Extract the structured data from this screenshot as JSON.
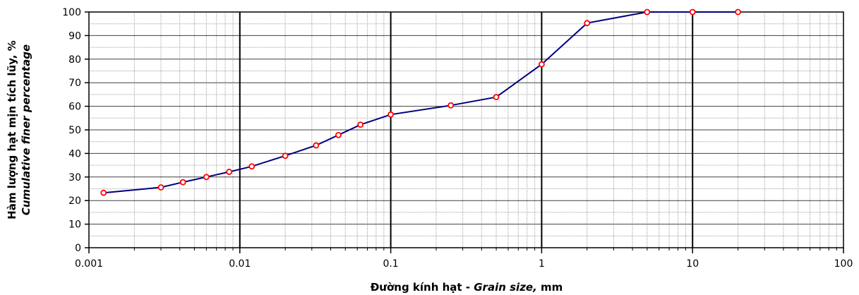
{
  "chart_data": {
    "type": "line",
    "xscale": "log",
    "xlim": [
      0.001,
      100
    ],
    "ylim": [
      0,
      100
    ],
    "grid": true,
    "xticks": [
      "0.001",
      "0.01",
      "0.1",
      "1",
      "10",
      "100"
    ],
    "yticks": [
      "0",
      "10",
      "20",
      "30",
      "40",
      "50",
      "60",
      "70",
      "80",
      "90",
      "100"
    ],
    "xlabel_main": "Đường kính hạt - ",
    "xlabel_italic": "Grain size,",
    "xlabel_unit": " mm",
    "ylabel_line1": "Hàm lượng hạt mịn tích lũy, %",
    "ylabel_line2": "Cumulative finer percentage",
    "colors": {
      "line": "#000080",
      "marker_edge": "#ff0000",
      "marker_fill": "#ffffff",
      "major_grid": "#000000",
      "minor_grid": "#a0a0a0"
    },
    "series": [
      {
        "x": [
          0.00125,
          0.003,
          0.0042,
          0.006,
          0.0085,
          0.012,
          0.02,
          0.032,
          0.045,
          0.063,
          0.1,
          0.25,
          0.5,
          1,
          2,
          5,
          10,
          20
        ],
        "y": [
          23.3,
          25.6,
          27.8,
          30.0,
          32.2,
          34.5,
          39.0,
          43.4,
          47.8,
          52.2,
          56.5,
          60.4,
          63.9,
          77.8,
          95.3,
          100,
          100,
          100
        ]
      }
    ]
  }
}
